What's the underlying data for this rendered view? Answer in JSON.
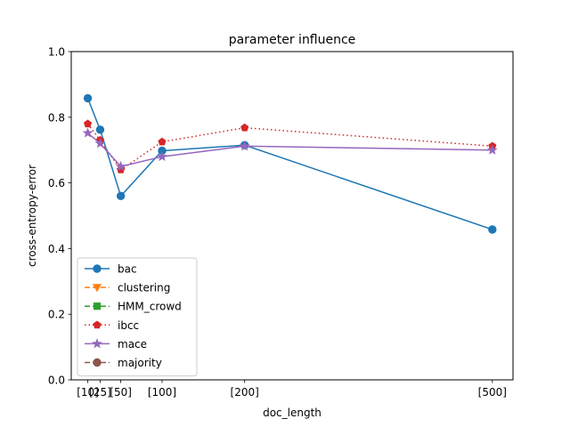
{
  "chart_data": {
    "type": "line",
    "title": "parameter influence",
    "xlabel": "doc_length",
    "ylabel": "cross-entropy-error",
    "ylim": [
      0,
      1.0
    ],
    "xlim": [
      -10,
      525
    ],
    "x": [
      10,
      25,
      50,
      100,
      200,
      500
    ],
    "x_tick_labels": [
      "[10]",
      "[25]",
      "[50]",
      "[100]",
      "[200]",
      "[500]"
    ],
    "y_ticks": [
      0.0,
      0.2,
      0.4,
      0.6,
      0.8,
      1.0
    ],
    "y_tick_labels": [
      "0.0",
      "0.2",
      "0.4",
      "0.6",
      "0.8",
      "1.0"
    ],
    "grid": false,
    "legend_position": "lower-left",
    "series": [
      {
        "name": "bac",
        "color": "#1f77b4",
        "linestyle": "solid",
        "marker": "circle",
        "values": [
          0.858,
          0.762,
          0.56,
          0.698,
          0.715,
          0.458
        ]
      },
      {
        "name": "clustering",
        "color": "#ff7f0e",
        "linestyle": "dashed",
        "marker": "triangle-down",
        "values": null
      },
      {
        "name": "HMM_crowd",
        "color": "#2ca02c",
        "linestyle": "dashed",
        "marker": "square",
        "values": null
      },
      {
        "name": "ibcc",
        "color": "#d62728",
        "linestyle": "dotted",
        "marker": "pentagon",
        "values": [
          0.78,
          0.73,
          0.64,
          0.725,
          0.768,
          0.712
        ]
      },
      {
        "name": "mace",
        "color": "#9467bd",
        "linestyle": "solid",
        "marker": "star",
        "values": [
          0.752,
          0.72,
          0.65,
          0.68,
          0.712,
          0.7
        ]
      },
      {
        "name": "majority",
        "color": "#8c564b",
        "linestyle": "dashed",
        "marker": "circle",
        "values": null
      }
    ]
  }
}
